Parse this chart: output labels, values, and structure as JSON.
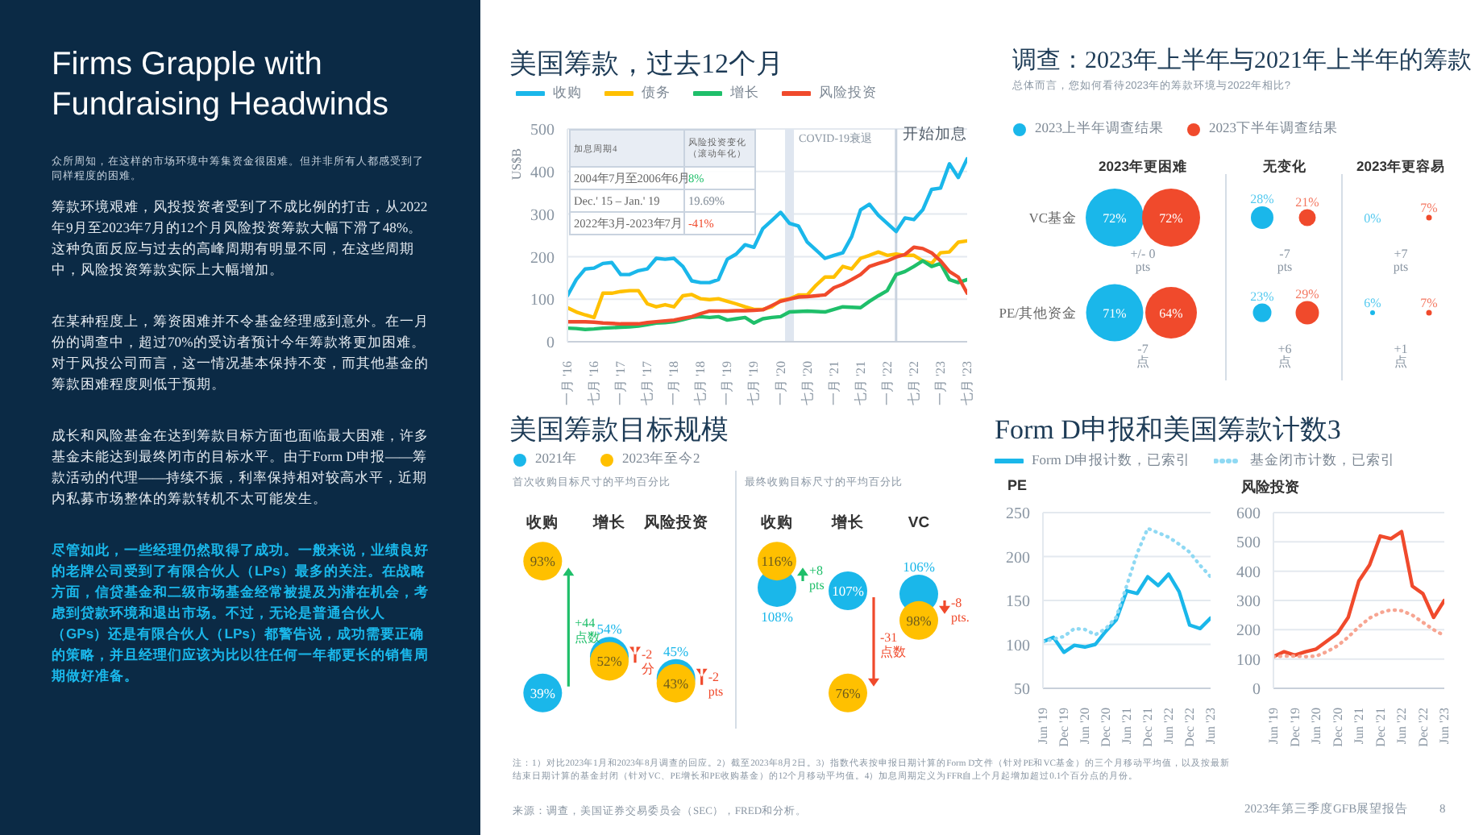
{
  "chart_data": [
    {
      "type": "other",
      "title": "Firms Grapple with Fundraising Headwinds",
      "subtitle": "众所周知，在这样的市场环境中筹集资金很困难。但并非所有人都感受到了同样程度的困难。",
      "annotations": [
        "筹款环境艰难，风投投资者受到了不成比例的打击，从2022年9月至2023年7月的12个月风险投资筹款大幅下滑了48%。这种负面反应与过去的高峰周期有明显不同，在这些周期中，风险投资筹款实际上大幅增加。",
        "在某种程度上，筹资困难并不令基金经理感到意外。在一月份的调查中，超过70%的受访者预计今年筹款将更加困难。对于风投公司而言，这一情况基本保持不变，而其他基金的筹款困难程度则低于预期。",
        "成长和风险基金在达到筹款目标方面也面临最大困难，许多基金未能达到最终闭市的目标水平。由于Form D申报——筹款活动的代理——持续不振，利率保持相对较高水平，近期内私募市场整体的筹款转机不太可能发生。",
        "尽管如此，一些经理仍然取得了成功。一般来说，业绩良好的老牌公司受到了有限合伙人（LPs）最多的关注。在战略方面，信贷基金和二级市场基金经常被提及为潜在机会，考虑到贷款环境和退出市场。不过，无论是普通合伙人（GPs）还是有限合伙人（LPs）都警告说，成功需要正确的策略，并且经理们应该为比以往任何一年都更长的销售周期做好准备。"
      ]
    },
    {
      "type": "line",
      "title": "美国筹款，过去12个月",
      "ylabel": "US$B",
      "legend": "top",
      "grid": "y",
      "xlim": [
        "2016-01",
        "2023-07"
      ],
      "ylim": [
        0,
        500
      ],
      "yticks": [
        0,
        100,
        200,
        300,
        400,
        500
      ],
      "xticks": [
        {
          "value": "2016-01",
          "label": "一月 '16"
        },
        {
          "value": "2016-07",
          "label": "七月 '16"
        },
        {
          "value": "2017-01",
          "label": "一月 '17"
        },
        {
          "value": "2017-07",
          "label": "七月 '17"
        },
        {
          "value": "2018-01",
          "label": "一月 '18"
        },
        {
          "value": "2018-07",
          "label": "七月 '18"
        },
        {
          "value": "2019-01",
          "label": "一月 '19"
        },
        {
          "value": "2019-07",
          "label": "七月 '19"
        },
        {
          "value": "2020-01",
          "label": "一月 '20"
        },
        {
          "value": "2020-07",
          "label": "七月 '20"
        },
        {
          "value": "2021-01",
          "label": "一月 '21"
        },
        {
          "value": "2021-07",
          "label": "七月 '21"
        },
        {
          "value": "2022-01",
          "label": "一月 '22"
        },
        {
          "value": "2022-07",
          "label": "七月 '22"
        },
        {
          "value": "2023-01",
          "label": "一月 '23"
        },
        {
          "value": "2023-07",
          "label": "七月 '23"
        }
      ],
      "x": [
        "2016-01",
        "2016-03",
        "2016-05",
        "2016-07",
        "2016-09",
        "2016-11",
        "2017-01",
        "2017-03",
        "2017-05",
        "2017-07",
        "2017-09",
        "2017-11",
        "2018-01",
        "2018-03",
        "2018-05",
        "2018-07",
        "2018-09",
        "2018-11",
        "2019-01",
        "2019-03",
        "2019-05",
        "2019-07",
        "2019-09",
        "2019-11",
        "2020-01",
        "2020-03",
        "2020-05",
        "2020-07",
        "2020-09",
        "2020-11",
        "2021-01",
        "2021-03",
        "2021-05",
        "2021-07",
        "2021-09",
        "2021-11",
        "2022-01",
        "2022-03",
        "2022-05",
        "2022-07",
        "2022-09",
        "2022-11",
        "2023-01",
        "2023-03",
        "2023-05",
        "2023-07"
      ],
      "series": [
        {
          "name": "收购",
          "color": "#1ab7ea",
          "values": [
            108,
            146,
            171,
            173,
            184,
            186,
            158,
            158,
            167,
            171,
            196,
            194,
            196,
            177,
            143,
            139,
            139,
            146,
            194,
            206,
            228,
            222,
            266,
            285,
            304,
            278,
            272,
            234,
            215,
            196,
            203,
            209,
            247,
            310,
            323,
            297,
            278,
            259,
            291,
            287,
            310,
            358,
            361,
            418,
            386,
            430
          ]
        },
        {
          "name": "债务",
          "color": "#ffc000",
          "values": [
            80,
            70,
            63,
            57,
            114,
            114,
            118,
            120,
            120,
            89,
            82,
            87,
            82,
            108,
            111,
            101,
            99,
            101,
            95,
            89,
            82,
            76,
            76,
            82,
            97,
            101,
            110,
            110,
            133,
            152,
            152,
            177,
            171,
            196,
            203,
            211,
            203,
            206,
            203,
            203,
            190,
            184,
            209,
            211,
            234,
            237
          ]
        },
        {
          "name": "增长",
          "color": "#1fbf6a",
          "values": [
            32,
            31,
            29,
            30,
            32,
            33,
            34,
            35,
            37,
            40,
            44,
            45,
            47,
            52,
            57,
            59,
            57,
            59,
            51,
            54,
            57,
            44,
            54,
            57,
            59,
            70,
            71,
            72,
            71,
            70,
            76,
            82,
            81,
            80,
            95,
            108,
            120,
            158,
            165,
            177,
            190,
            177,
            184,
            146,
            139,
            146
          ]
        },
        {
          "name": "风险投资",
          "color": "#f04a2c",
          "values": [
            47,
            47,
            47,
            46,
            44,
            43,
            42,
            42,
            42,
            45,
            47,
            49,
            51,
            55,
            59,
            66,
            72,
            72,
            72,
            73,
            73,
            74,
            75,
            85,
            95,
            100,
            105,
            106,
            108,
            110,
            127,
            135,
            146,
            158,
            177,
            184,
            190,
            199,
            205,
            222,
            219,
            209,
            190,
            165,
            152,
            114
          ]
        }
      ],
      "bands": [
        {
          "axis": "x",
          "from": "2020-02",
          "to": "2020-04",
          "label": "COVID-19衰退",
          "color": "#dfe6f0"
        }
      ],
      "ref_lines": [
        {
          "axis": "x",
          "value": "2022-03",
          "label": "开始加息",
          "color": "#c9d3df"
        }
      ],
      "annotations": [
        "加息周期4",
        "风险投资变化（滚动年化）",
        "2004年7月至2006年6月",
        "8%",
        "Dec.' 15 – Jan.' 19",
        "19.69%",
        "2022年3月-2023年7月",
        "-41%"
      ]
    },
    {
      "type": "other",
      "title": "调查：2023年上半年与2021年上半年的筹款",
      "subtitle": "总体而言，您如何看待2023年的筹款环境与2022年相比?",
      "legend": "top",
      "y_categories": [
        "VC基金",
        "PE/其他资金"
      ],
      "categories": [
        "2023年更困难",
        "无变化",
        "2023年更容易"
      ],
      "series": [
        {
          "name": "2023上半年调查结果",
          "color": "#1ab7ea",
          "values": [
            72,
            28,
            0
          ],
          "value_labels": [
            "72%",
            "28%",
            "0%"
          ]
        },
        {
          "name": "2023下半年调查结果",
          "color": "#f04a2c",
          "values": [
            72,
            21,
            7
          ],
          "value_labels": [
            "72%",
            "21%",
            "7%"
          ]
        },
        {
          "color": "#1ab7ea",
          "values": [
            71,
            23,
            6
          ],
          "value_labels": [
            "71%",
            "23%",
            "6%"
          ]
        },
        {
          "color": "#f04a2c",
          "values": [
            64,
            29,
            7
          ],
          "value_labels": [
            "64%",
            "29%",
            "7%"
          ]
        }
      ],
      "annotations": [
        "+/- 0 pts",
        "-7 pts",
        "+7 pts",
        "-7 点",
        "+6 点",
        "+1 点"
      ]
    },
    {
      "type": "scatter",
      "title": "美国筹款目标规模",
      "subtitle": "首次收购目标尺寸的平均百分比",
      "legend": "top left",
      "marker": "circle",
      "categories": [
        "收购",
        "增长",
        "风险投资"
      ],
      "series": [
        {
          "name": "2021年",
          "color": "#1ab7ea",
          "values": [
            39,
            54,
            45
          ],
          "value_labels": [
            "39%",
            "54%",
            "45%"
          ]
        },
        {
          "name": "2023年至今2",
          "color": "#ffc000",
          "values": [
            93,
            52,
            43
          ],
          "value_labels": [
            "93%",
            "52%",
            "43%"
          ]
        }
      ],
      "annotations": [
        "+44 点数",
        "-2 分",
        "-2 pts"
      ]
    },
    {
      "type": "scatter",
      "subtitle": "最终收购目标尺寸的平均百分比",
      "marker": "circle",
      "categories": [
        "收购",
        "增长",
        "VC"
      ],
      "series": [
        {
          "color": "#1ab7ea",
          "values": [
            108,
            107,
            106
          ],
          "value_labels": [
            "108%",
            "107%",
            "106%"
          ]
        },
        {
          "color": "#ffc000",
          "values": [
            116,
            76,
            98
          ],
          "value_labels": [
            "116%",
            "76%",
            "98%"
          ]
        }
      ],
      "annotations": [
        "+8 pts",
        "-31 点数",
        "-8 pts."
      ]
    },
    {
      "type": "line",
      "title": "Form D申报和美国筹款计数3",
      "ylabel": "PE",
      "legend": "top",
      "grid": "y",
      "xlim": [
        "2019-06",
        "2023-06"
      ],
      "ylim": [
        50,
        250
      ],
      "yticks": [
        50,
        100,
        150,
        200,
        250
      ],
      "xticks": [
        {
          "value": "2019-06",
          "label": "Jun '19"
        },
        {
          "value": "2019-12",
          "label": "Dec '19"
        },
        {
          "value": "2020-06",
          "label": "Jun '20"
        },
        {
          "value": "2020-12",
          "label": "Dec '20"
        },
        {
          "value": "2021-06",
          "label": "Jun '21"
        },
        {
          "value": "2021-12",
          "label": "Dec '21"
        },
        {
          "value": "2022-06",
          "label": "Jun '22"
        },
        {
          "value": "2022-12",
          "label": "Dec '22"
        },
        {
          "value": "2023-06",
          "label": "Jun '23"
        }
      ],
      "x": [
        "2019-06",
        "2019-09",
        "2019-12",
        "2020-03",
        "2020-06",
        "2020-09",
        "2020-12",
        "2021-03",
        "2021-06",
        "2021-09",
        "2021-12",
        "2022-03",
        "2022-06",
        "2022-09",
        "2022-12",
        "2023-03",
        "2023-06"
      ],
      "series": [
        {
          "name": "Form D申报计数，已索引",
          "color": "#1ab7ea",
          "line_style": "solid",
          "values": [
            103,
            108,
            91,
            99,
            97,
            100,
            115,
            128,
            161,
            158,
            177,
            167,
            180,
            160,
            122,
            118,
            130
          ]
        },
        {
          "name": "基金闭市计数，已索引",
          "color": "#8fd9f3",
          "line_style": "dotted",
          "values": [
            103,
            106,
            109,
            118,
            117,
            111,
            118,
            131,
            167,
            204,
            232,
            227,
            222,
            214,
            205,
            190,
            177
          ]
        }
      ],
      "annotations": [
        "注：1）对比2023年1月和2023年8月调查的回应。2）截至2023年8月2日。3）指数代表按申报日期计算的Form D文件（针对PE和VC基金）的三个月移动平均值，以及按最新结束日期计算的基金封闭（针对VC、PE增长和PE收购基金）的12个月移动平均值。4）加息周期定义为FFR自上个月起增加超过0.1个百分点的月份。",
        "来源：调查，美国证券交易委员会（SEC），FRED和分析。",
        "2023年第三季度GFB展望报告",
        "8"
      ]
    },
    {
      "type": "line",
      "ylabel": "风险投资",
      "grid": "y",
      "xlim": [
        "2019-06",
        "2023-06"
      ],
      "ylim": [
        0,
        600
      ],
      "yticks": [
        0,
        100,
        200,
        300,
        400,
        500,
        600
      ],
      "xticks": [
        {
          "value": "2019-06",
          "label": "Jun '19"
        },
        {
          "value": "2019-12",
          "label": "Dec '19"
        },
        {
          "value": "2020-06",
          "label": "Jun '20"
        },
        {
          "value": "2020-12",
          "label": "Dec '20"
        },
        {
          "value": "2021-06",
          "label": "Jun '21"
        },
        {
          "value": "2021-12",
          "label": "Dec '21"
        },
        {
          "value": "2022-06",
          "label": "Jun '22"
        },
        {
          "value": "2022-12",
          "label": "Dec '22"
        },
        {
          "value": "2023-06",
          "label": "Jun '23"
        }
      ],
      "x": [
        "2019-06",
        "2019-09",
        "2019-12",
        "2020-03",
        "2020-06",
        "2020-09",
        "2020-12",
        "2021-03",
        "2021-06",
        "2021-09",
        "2021-12",
        "2022-03",
        "2022-06",
        "2022-09",
        "2022-12",
        "2023-03",
        "2023-06"
      ],
      "series": [
        {
          "color": "#f04a2c",
          "line_style": "solid",
          "values": [
            108,
            125,
            113,
            125,
            134,
            161,
            188,
            242,
            367,
            421,
            520,
            511,
            535,
            349,
            323,
            242,
            300
          ]
        },
        {
          "color": "#f7a592",
          "line_style": "dotted",
          "values": [
            108,
            110,
            110,
            108,
            110,
            125,
            145,
            175,
            210,
            240,
            258,
            268,
            265,
            250,
            225,
            200,
            180
          ]
        }
      ]
    }
  ]
}
